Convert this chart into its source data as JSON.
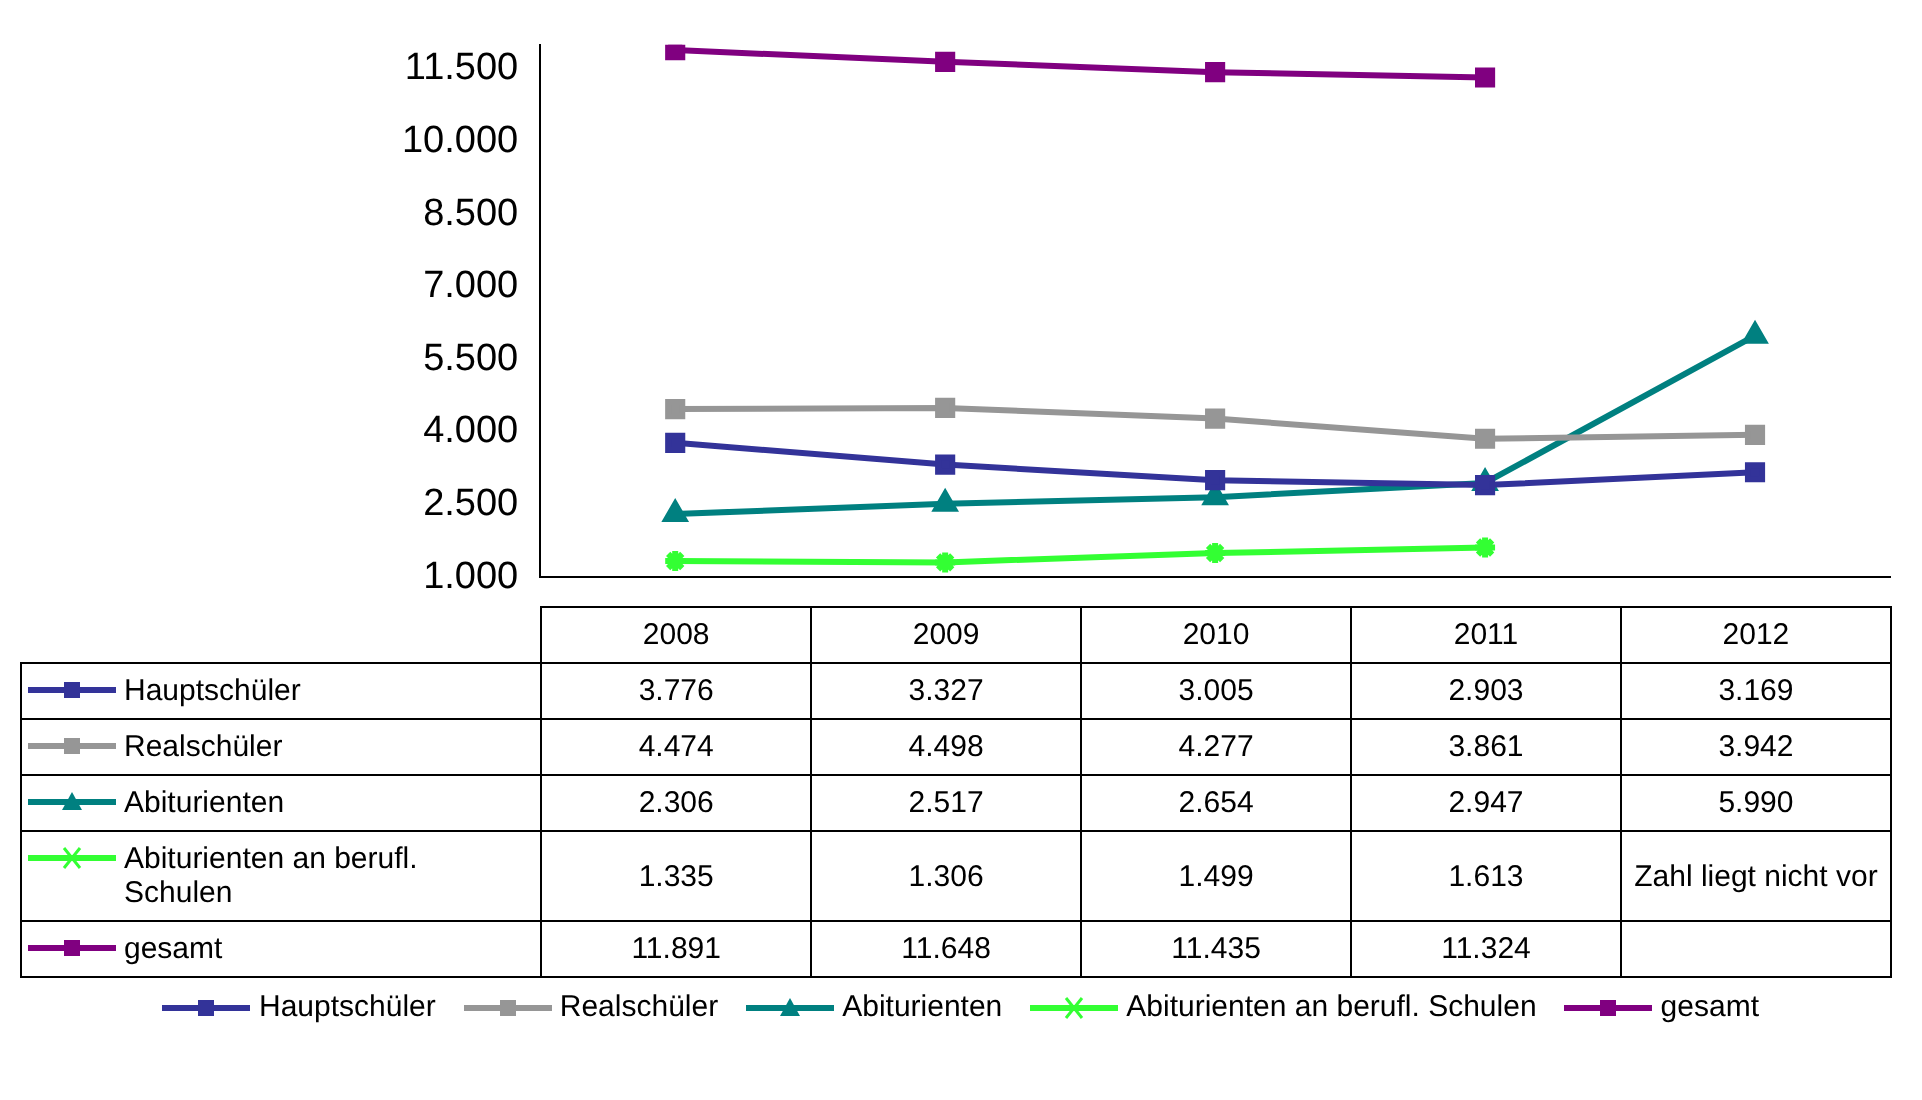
{
  "chart_data": {
    "type": "line",
    "categories": [
      "2008",
      "2009",
      "2010",
      "2011",
      "2012"
    ],
    "series": [
      {
        "name": "Hauptschüler",
        "color": "#333399",
        "marker": "square",
        "values": [
          3776,
          3327,
          3005,
          2903,
          3169
        ],
        "value_labels": [
          "3.776",
          "3.327",
          "3.005",
          "2.903",
          "3.169"
        ]
      },
      {
        "name": "Realschüler",
        "color": "#969696",
        "marker": "square",
        "values": [
          4474,
          4498,
          4277,
          3861,
          3942
        ],
        "value_labels": [
          "4.474",
          "4.498",
          "4.277",
          "3.861",
          "3.942"
        ]
      },
      {
        "name": "Abiturienten",
        "color": "#008080",
        "marker": "triangle",
        "values": [
          2306,
          2517,
          2654,
          2947,
          5990
        ],
        "value_labels": [
          "2.306",
          "2.517",
          "2.654",
          "2.947",
          "5.990"
        ]
      },
      {
        "name": "Abiturienten an berufl. Schulen",
        "color": "#33ff33",
        "marker": "cross",
        "values": [
          1335,
          1306,
          1499,
          1613,
          null
        ],
        "value_labels": [
          "1.335",
          "1.306",
          "1.499",
          "1.613",
          "Zahl liegt nicht vor"
        ]
      },
      {
        "name": "gesamt",
        "color": "#800080",
        "marker": "square",
        "values": [
          11891,
          11648,
          11435,
          11324,
          null
        ],
        "value_labels": [
          "11.891",
          "11.648",
          "11.435",
          "11.324",
          null
        ]
      }
    ],
    "ylim": [
      1000,
      12000
    ],
    "yticks": [
      {
        "value": 1000,
        "label": "1.000"
      },
      {
        "value": 2500,
        "label": "2.500"
      },
      {
        "value": 4000,
        "label": "4.000"
      },
      {
        "value": 5500,
        "label": "5.500"
      },
      {
        "value": 7000,
        "label": "7.000"
      },
      {
        "value": 8500,
        "label": "8.500"
      },
      {
        "value": 10000,
        "label": "10.000"
      },
      {
        "value": 11500,
        "label": "11.500"
      }
    ],
    "grid": false,
    "legend": "bottom",
    "line_style": "solid"
  }
}
